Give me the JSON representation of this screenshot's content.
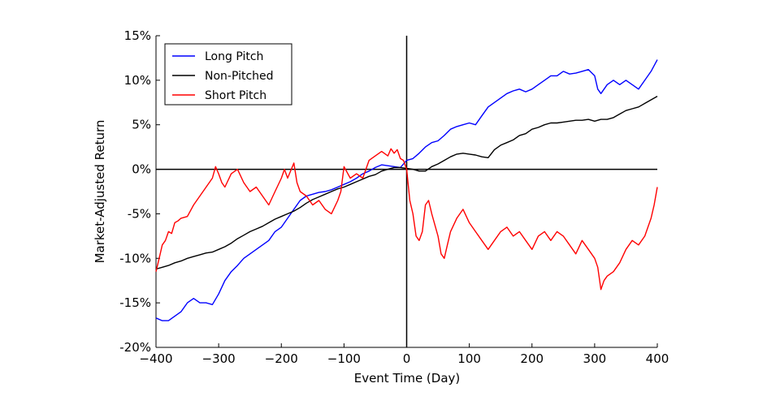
{
  "chart_data": {
    "type": "line",
    "title": "",
    "xlabel": "Event Time (Day)",
    "ylabel": "Market-Adjusted Return",
    "xlim": [
      -400,
      400
    ],
    "ylim": [
      -0.2,
      0.15
    ],
    "xticks": [
      "−400",
      "−300",
      "−200",
      "−100",
      "0",
      "100",
      "200",
      "300",
      "400"
    ],
    "yticks": [
      "15%",
      "10%",
      "5%",
      "0%",
      "-5%",
      "-10%",
      "-15%",
      "-20%"
    ],
    "grid": false,
    "legend_position": "top-left",
    "reference_lines": {
      "y": 0,
      "x": 0
    },
    "series": [
      {
        "name": "Long Pitch",
        "color": "#0000ff",
        "x": [
          -400,
          -390,
          -380,
          -370,
          -360,
          -350,
          -340,
          -330,
          -320,
          -310,
          -300,
          -290,
          -280,
          -270,
          -260,
          -250,
          -240,
          -230,
          -220,
          -210,
          -200,
          -190,
          -180,
          -170,
          -160,
          -150,
          -140,
          -130,
          -120,
          -110,
          -100,
          -90,
          -80,
          -70,
          -60,
          -50,
          -40,
          -30,
          -20,
          -10,
          0,
          10,
          20,
          30,
          40,
          50,
          60,
          70,
          80,
          90,
          100,
          110,
          120,
          130,
          140,
          150,
          160,
          170,
          180,
          190,
          200,
          210,
          220,
          230,
          240,
          250,
          260,
          270,
          280,
          290,
          300,
          305,
          310,
          320,
          330,
          340,
          350,
          360,
          370,
          380,
          390,
          400
        ],
        "y": [
          -0.167,
          -0.17,
          -0.17,
          -0.165,
          -0.16,
          -0.15,
          -0.145,
          -0.15,
          -0.15,
          -0.152,
          -0.14,
          -0.125,
          -0.115,
          -0.108,
          -0.1,
          -0.095,
          -0.09,
          -0.085,
          -0.08,
          -0.07,
          -0.065,
          -0.055,
          -0.045,
          -0.035,
          -0.03,
          -0.028,
          -0.026,
          -0.025,
          -0.023,
          -0.02,
          -0.017,
          -0.014,
          -0.01,
          -0.005,
          -0.002,
          0.002,
          0.005,
          0.004,
          0.003,
          0.002,
          0.01,
          0.012,
          0.018,
          0.025,
          0.03,
          0.032,
          0.038,
          0.045,
          0.048,
          0.05,
          0.052,
          0.05,
          0.06,
          0.07,
          0.075,
          0.08,
          0.085,
          0.088,
          0.09,
          0.087,
          0.09,
          0.095,
          0.1,
          0.105,
          0.105,
          0.11,
          0.107,
          0.108,
          0.11,
          0.112,
          0.105,
          0.09,
          0.085,
          0.095,
          0.1,
          0.095,
          0.1,
          0.095,
          0.09,
          0.1,
          0.11,
          0.123
        ]
      },
      {
        "name": "Non-Pitched",
        "color": "#000000",
        "x": [
          -400,
          -390,
          -380,
          -370,
          -360,
          -350,
          -340,
          -330,
          -320,
          -310,
          -300,
          -290,
          -280,
          -270,
          -260,
          -250,
          -240,
          -230,
          -220,
          -210,
          -200,
          -190,
          -180,
          -170,
          -160,
          -150,
          -140,
          -130,
          -120,
          -110,
          -100,
          -90,
          -80,
          -70,
          -60,
          -50,
          -40,
          -30,
          -20,
          -10,
          0,
          10,
          20,
          30,
          40,
          50,
          60,
          70,
          80,
          90,
          100,
          110,
          120,
          130,
          140,
          150,
          160,
          170,
          180,
          190,
          200,
          210,
          220,
          230,
          240,
          250,
          260,
          270,
          280,
          290,
          300,
          310,
          320,
          330,
          340,
          350,
          360,
          370,
          380,
          390,
          400
        ],
        "y": [
          -0.112,
          -0.11,
          -0.108,
          -0.105,
          -0.103,
          -0.1,
          -0.098,
          -0.096,
          -0.094,
          -0.093,
          -0.09,
          -0.087,
          -0.083,
          -0.078,
          -0.074,
          -0.07,
          -0.067,
          -0.064,
          -0.06,
          -0.056,
          -0.053,
          -0.05,
          -0.047,
          -0.043,
          -0.038,
          -0.034,
          -0.031,
          -0.028,
          -0.025,
          -0.022,
          -0.02,
          -0.017,
          -0.014,
          -0.011,
          -0.008,
          -0.006,
          -0.002,
          0.0,
          0.002,
          0.002,
          0.001,
          0.0,
          -0.002,
          -0.002,
          0.003,
          0.006,
          0.01,
          0.014,
          0.017,
          0.018,
          0.017,
          0.016,
          0.014,
          0.013,
          0.022,
          0.027,
          0.03,
          0.033,
          0.038,
          0.04,
          0.045,
          0.047,
          0.05,
          0.052,
          0.052,
          0.053,
          0.054,
          0.055,
          0.055,
          0.056,
          0.054,
          0.056,
          0.056,
          0.058,
          0.062,
          0.066,
          0.068,
          0.07,
          0.074,
          0.078,
          0.082
        ]
      },
      {
        "name": "Short Pitch",
        "color": "#ff0000",
        "x": [
          -400,
          -395,
          -390,
          -385,
          -380,
          -375,
          -370,
          -365,
          -360,
          -350,
          -340,
          -330,
          -320,
          -310,
          -305,
          -300,
          -295,
          -290,
          -280,
          -270,
          -260,
          -250,
          -240,
          -230,
          -220,
          -210,
          -200,
          -195,
          -190,
          -180,
          -175,
          -170,
          -160,
          -150,
          -140,
          -130,
          -120,
          -110,
          -105,
          -100,
          -90,
          -80,
          -70,
          -60,
          -50,
          -40,
          -30,
          -25,
          -20,
          -15,
          -10,
          -5,
          0,
          5,
          10,
          15,
          20,
          25,
          30,
          35,
          40,
          50,
          55,
          60,
          65,
          70,
          80,
          90,
          100,
          110,
          120,
          130,
          140,
          150,
          160,
          170,
          180,
          190,
          200,
          210,
          220,
          230,
          240,
          250,
          260,
          270,
          280,
          290,
          300,
          305,
          310,
          315,
          320,
          330,
          340,
          350,
          360,
          370,
          380,
          390,
          395,
          400
        ],
        "y": [
          -0.115,
          -0.1,
          -0.085,
          -0.08,
          -0.07,
          -0.072,
          -0.06,
          -0.058,
          -0.055,
          -0.053,
          -0.04,
          -0.03,
          -0.02,
          -0.01,
          0.003,
          -0.005,
          -0.015,
          -0.02,
          -0.005,
          0.0,
          -0.015,
          -0.025,
          -0.02,
          -0.03,
          -0.04,
          -0.025,
          -0.01,
          0.0,
          -0.01,
          0.007,
          -0.015,
          -0.025,
          -0.03,
          -0.04,
          -0.035,
          -0.045,
          -0.05,
          -0.035,
          -0.025,
          0.003,
          -0.01,
          -0.005,
          -0.01,
          0.01,
          0.015,
          0.02,
          0.015,
          0.023,
          0.018,
          0.022,
          0.012,
          0.01,
          0.0,
          -0.035,
          -0.05,
          -0.075,
          -0.08,
          -0.07,
          -0.04,
          -0.035,
          -0.05,
          -0.075,
          -0.095,
          -0.1,
          -0.085,
          -0.07,
          -0.055,
          -0.045,
          -0.06,
          -0.07,
          -0.08,
          -0.09,
          -0.08,
          -0.07,
          -0.065,
          -0.075,
          -0.07,
          -0.08,
          -0.09,
          -0.075,
          -0.07,
          -0.08,
          -0.07,
          -0.075,
          -0.085,
          -0.095,
          -0.08,
          -0.09,
          -0.1,
          -0.11,
          -0.135,
          -0.125,
          -0.12,
          -0.115,
          -0.105,
          -0.09,
          -0.08,
          -0.085,
          -0.075,
          -0.055,
          -0.04,
          -0.02
        ]
      }
    ]
  }
}
